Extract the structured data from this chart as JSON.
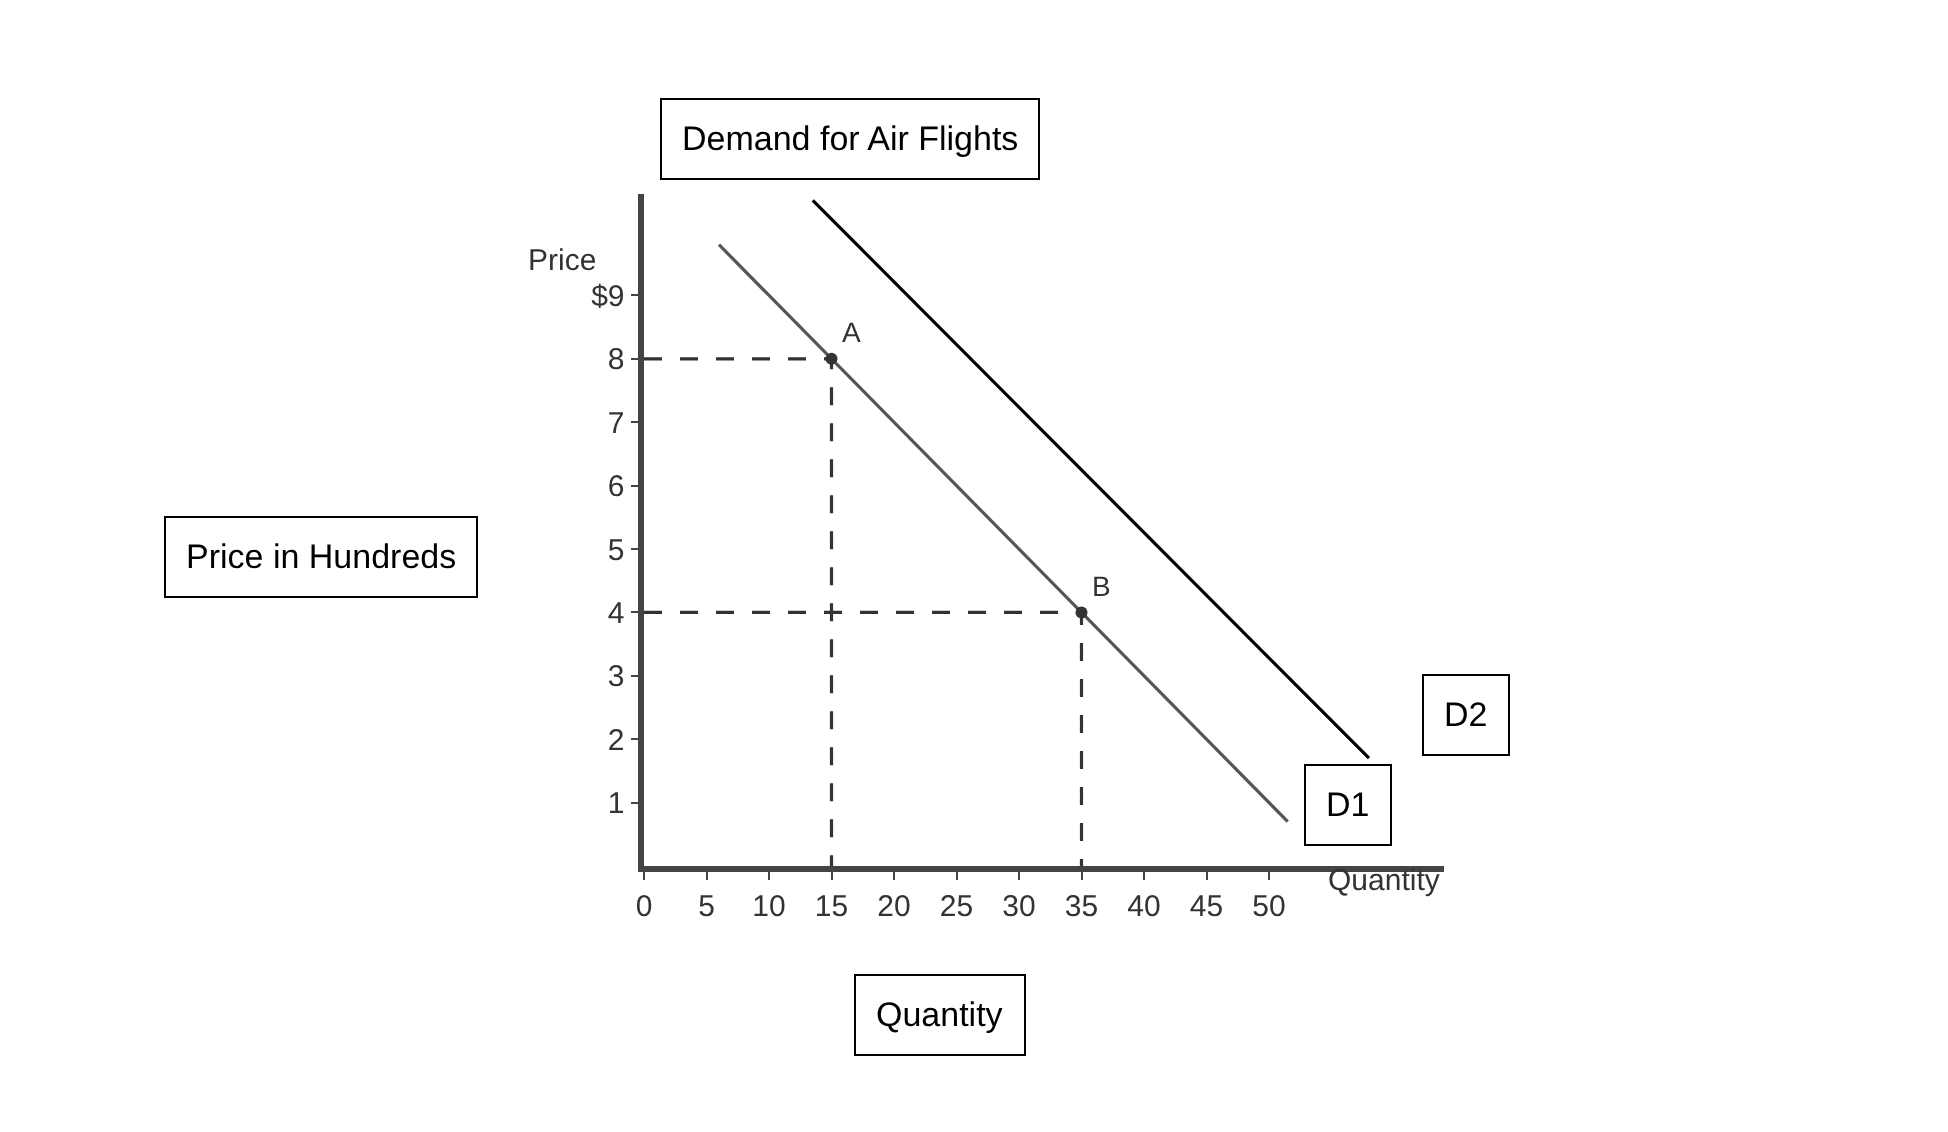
{
  "chart_data": {
    "type": "line",
    "title": "Demand for Air Flights",
    "xlabel": "Quantity",
    "ylabel": "Price in Hundreds",
    "series": [
      {
        "name": "D1",
        "color": "#555555",
        "x": [
          6,
          51.5
        ],
        "values": [
          9.8,
          0.7
        ]
      },
      {
        "name": "D2",
        "color": "#000000",
        "x": [
          13.5,
          58
        ],
        "values": [
          10.5,
          1.7
        ]
      },
      {
        "color": "#333333",
        "x": [
          0,
          15,
          15
        ],
        "values": [
          8,
          8,
          0
        ],
        "line_style": "dashed"
      },
      {
        "color": "#333333",
        "x": [
          0,
          35,
          35
        ],
        "values": [
          4,
          4,
          0
        ],
        "line_style": "dashed"
      },
      {
        "type": "scatter",
        "color": "#333333",
        "x": [
          15,
          35
        ],
        "values": [
          8,
          4
        ],
        "marker": "circle"
      }
    ],
    "annotations": [
      "Price",
      "Quantity",
      {
        "text": "A",
        "x": 15,
        "y": 8
      },
      {
        "text": "B",
        "x": 35,
        "y": 4
      }
    ],
    "xlim": [
      0,
      64
    ],
    "ylim": [
      0,
      10.6
    ],
    "xticks": [
      {
        "value": 0,
        "label": "0"
      },
      5,
      10,
      15,
      20,
      25,
      30,
      35,
      40,
      45,
      50
    ],
    "yticks": [
      1,
      2,
      3,
      4,
      5,
      6,
      7,
      8,
      {
        "value": 9,
        "label": "$9"
      }
    ],
    "grid": false,
    "marker": "none",
    "line_style": "solid"
  }
}
